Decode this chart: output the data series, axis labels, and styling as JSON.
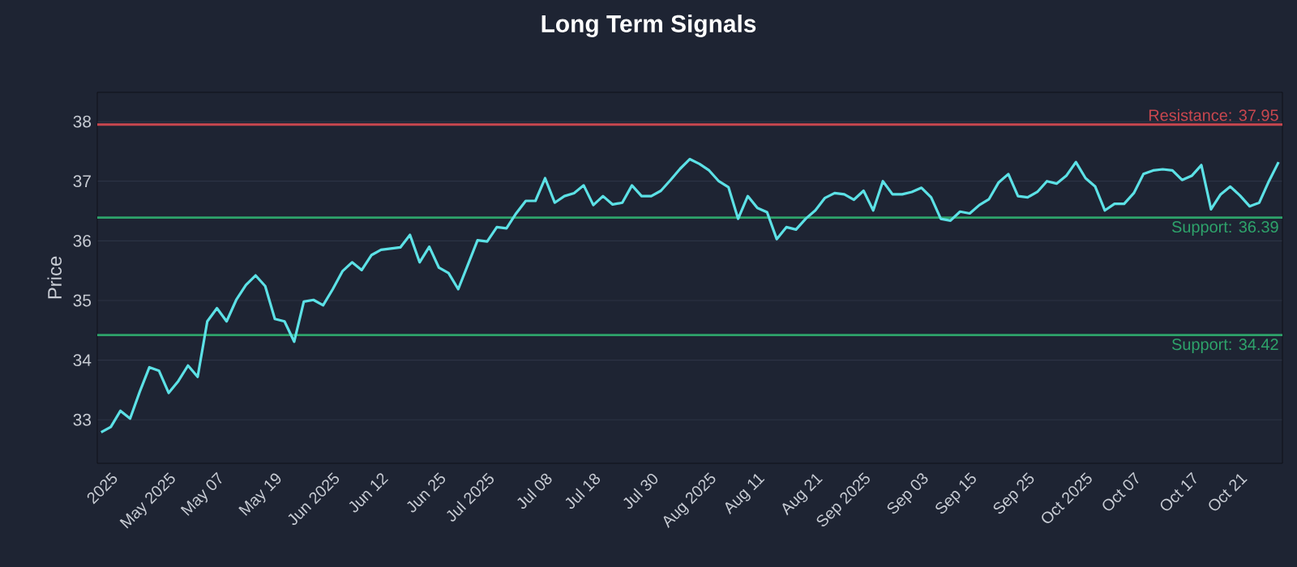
{
  "chart_data": {
    "type": "line",
    "title": "Long Term Signals",
    "ylabel": "Price",
    "categories": [
      null,
      "2025",
      null,
      null,
      null,
      null,
      null,
      "May 2025",
      null,
      null,
      null,
      null,
      "May 07",
      null,
      null,
      null,
      null,
      null,
      "May 19",
      null,
      null,
      null,
      null,
      null,
      "Jun 2025",
      null,
      null,
      null,
      null,
      "Jun 12",
      null,
      null,
      null,
      null,
      null,
      "Jun 25",
      null,
      null,
      null,
      null,
      "Jul 2025",
      null,
      null,
      null,
      null,
      null,
      "Jul 08",
      null,
      null,
      null,
      null,
      "Jul 18",
      null,
      null,
      null,
      null,
      null,
      "Jul 30",
      null,
      null,
      null,
      null,
      null,
      "Aug 2025",
      null,
      null,
      null,
      null,
      "Aug 11",
      null,
      null,
      null,
      null,
      null,
      "Aug 21",
      null,
      null,
      null,
      null,
      "Sep 2025",
      null,
      null,
      null,
      null,
      null,
      "Sep 03",
      null,
      null,
      null,
      null,
      "Sep 15",
      null,
      null,
      null,
      null,
      null,
      "Sep 25",
      null,
      null,
      null,
      null,
      null,
      "Oct 2025",
      null,
      null,
      null,
      null,
      "Oct 07",
      null,
      null,
      null,
      null,
      null,
      "Oct 17",
      null,
      null,
      null,
      null,
      "Oct 21",
      null,
      null,
      null,
      null
    ],
    "series": [
      {
        "color": "#5ce1e6",
        "values": [
          32.79,
          32.88,
          33.15,
          33.02,
          33.47,
          33.88,
          33.82,
          33.45,
          33.65,
          33.91,
          33.72,
          34.65,
          34.87,
          34.65,
          35.01,
          35.26,
          35.42,
          35.24,
          34.69,
          34.65,
          34.31,
          34.98,
          35.01,
          34.92,
          35.19,
          35.49,
          35.64,
          35.51,
          35.76,
          35.85,
          35.87,
          35.89,
          36.1,
          35.64,
          35.9,
          35.55,
          35.46,
          35.19,
          35.6,
          36.01,
          35.99,
          36.23,
          36.21,
          36.46,
          36.67,
          36.67,
          37.05,
          36.64,
          36.75,
          36.8,
          36.93,
          36.6,
          36.75,
          36.61,
          36.64,
          36.93,
          36.75,
          36.75,
          36.84,
          37.02,
          37.21,
          37.37,
          37.29,
          37.18,
          37.0,
          36.9,
          36.37,
          36.75,
          36.55,
          36.48,
          36.03,
          36.23,
          36.19,
          36.37,
          36.51,
          36.72,
          36.8,
          36.78,
          36.69,
          36.84,
          36.51,
          37.0,
          36.78,
          36.78,
          36.82,
          36.89,
          36.73,
          36.37,
          36.34,
          36.49,
          36.46,
          36.6,
          36.7,
          36.98,
          37.12,
          36.75,
          36.73,
          36.82,
          37.0,
          36.96,
          37.09,
          37.32,
          37.05,
          36.91,
          36.51,
          36.62,
          36.62,
          36.8,
          37.12,
          37.18,
          37.2,
          37.18,
          37.02,
          37.09,
          37.27,
          36.53,
          36.78,
          36.91,
          36.76,
          36.58,
          36.64,
          37.0,
          37.32
        ]
      }
    ],
    "ylim": [
      32.27,
      38.49
    ],
    "yticks": [
      33,
      34,
      35,
      36,
      37,
      38
    ],
    "grid": "y",
    "ref_lines": [
      {
        "axis": "y",
        "value": 37.95,
        "label": "Resistance: 37.95",
        "color": "#c9474f"
      },
      {
        "axis": "y",
        "value": 36.39,
        "label": "Support: 36.39",
        "color": "#2ea36b"
      },
      {
        "axis": "y",
        "value": 34.42,
        "label": "Support: 34.42",
        "color": "#2ea36b"
      }
    ]
  }
}
